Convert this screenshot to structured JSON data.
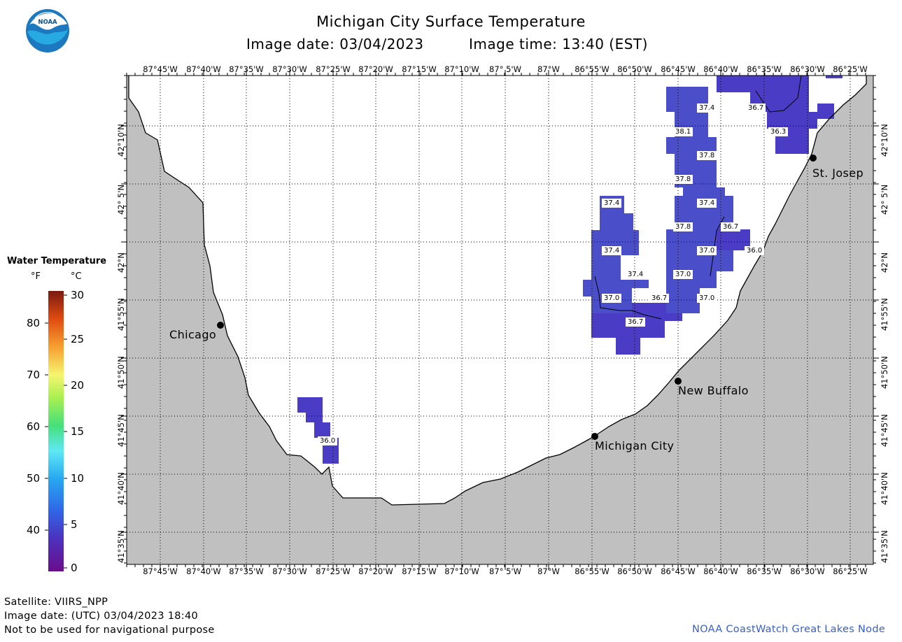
{
  "header": {
    "title": "Michigan City Surface Temperature",
    "image_date": "Image date: 03/04/2023",
    "image_time": "Image time: 13:40 (EST)",
    "logo_text": "NOAA"
  },
  "colors": {
    "land": "#c0c0c0",
    "water": "#ffffff",
    "grid": "#000000",
    "pixel_purple": "#4a3cc4",
    "pixel_blue": "#4b4ec9",
    "credit_blue": "#3a5fc8"
  },
  "axes": {
    "lon_ticks": [
      "87°45'W",
      "87°40'W",
      "87°35'W",
      "87°30'W",
      "87°25'W",
      "87°20'W",
      "87°15'W",
      "87°10'W",
      "87° 5'W",
      "87°W",
      "86°55'W",
      "86°50'W",
      "86°45'W",
      "86°40'W",
      "86°35'W",
      "86°30'W",
      "86°25'W"
    ],
    "lat_ticks": [
      "42°10'N",
      "42° 5'N",
      "42°N",
      "41°55'N",
      "41°50'N",
      "41°45'N",
      "41°40'N",
      "41°35'N"
    ]
  },
  "legend": {
    "title": "Water Temperature",
    "unit_f": "°F",
    "unit_c": "°C",
    "f_ticks": [
      "80",
      "70",
      "60",
      "50",
      "40"
    ],
    "c_ticks": [
      "30",
      "25",
      "20",
      "15",
      "10",
      "5",
      "0"
    ]
  },
  "cities": [
    {
      "name": "Chicago"
    },
    {
      "name": "Michigan City"
    },
    {
      "name": "New Buffalo"
    },
    {
      "name": "St. Josep"
    }
  ],
  "temperature_labels": [
    "37.4",
    "36.7",
    "38.1",
    "36.3",
    "37.8",
    "37.8",
    "37.4",
    "37.4",
    "37.8",
    "36.7",
    "37.4",
    "37.0",
    "36.0",
    "37.4",
    "37.0",
    "37.0",
    "36.7",
    "37.0",
    "36.7",
    "36.0"
  ],
  "footer": {
    "satellite": "Satellite: VIIRS_NPP",
    "utc_date": "Image date: (UTC) 03/04/2023  18:40",
    "warning": "Not to be used for navigational purpose",
    "credit": "NOAA CoastWatch Great Lakes Node"
  }
}
